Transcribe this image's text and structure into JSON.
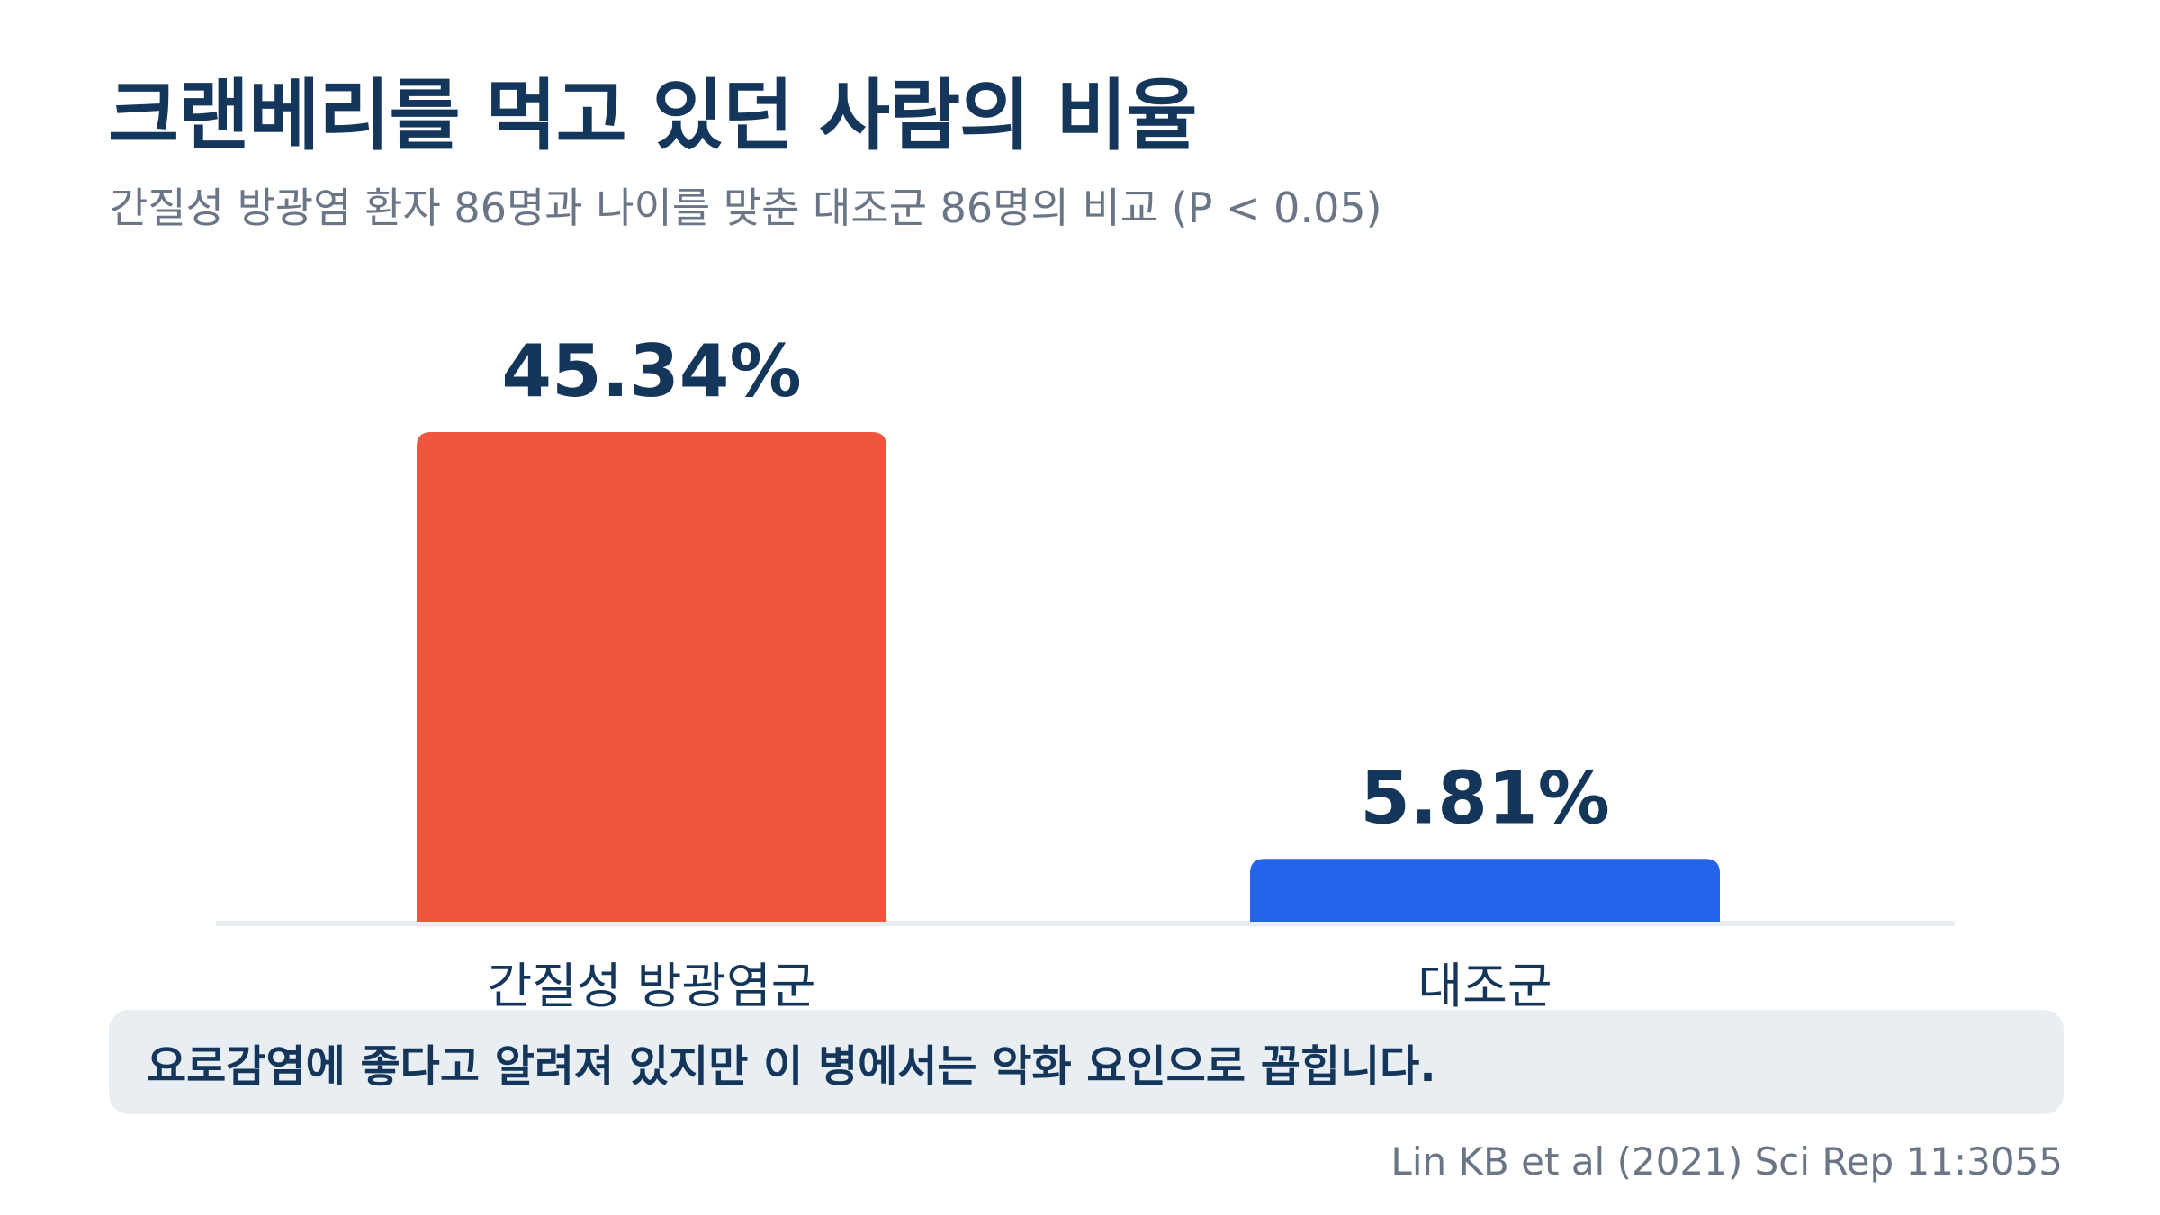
{
  "title": "크랜베리를 먹고 있던 사람의 비율",
  "subtitle": "간질성 방광염 환자 86명과 나이를 맞춘 대조군 86명의 비교 (P < 0.05)",
  "note": "요로감염에 좋다고 알려져 있지만 이 병에서는 악화 요인으로 꼽힙니다.",
  "source": "Lin KB et al (2021) Sci Rep 11:3055",
  "colors": {
    "title": "#14365a",
    "bar_patient": "#f0563d",
    "bar_control": "#2563eb",
    "baseline": "#e9eef3",
    "note_bg": "#e9eef3"
  },
  "chart_data": {
    "type": "bar",
    "categories": [
      "간질성 방광염군",
      "대조군"
    ],
    "values": [
      45.34,
      5.81
    ],
    "value_labels": [
      "45.34%",
      "5.81%"
    ],
    "unit": "%",
    "ylim": [
      0,
      45.34
    ],
    "grid": false,
    "legend": "none"
  }
}
